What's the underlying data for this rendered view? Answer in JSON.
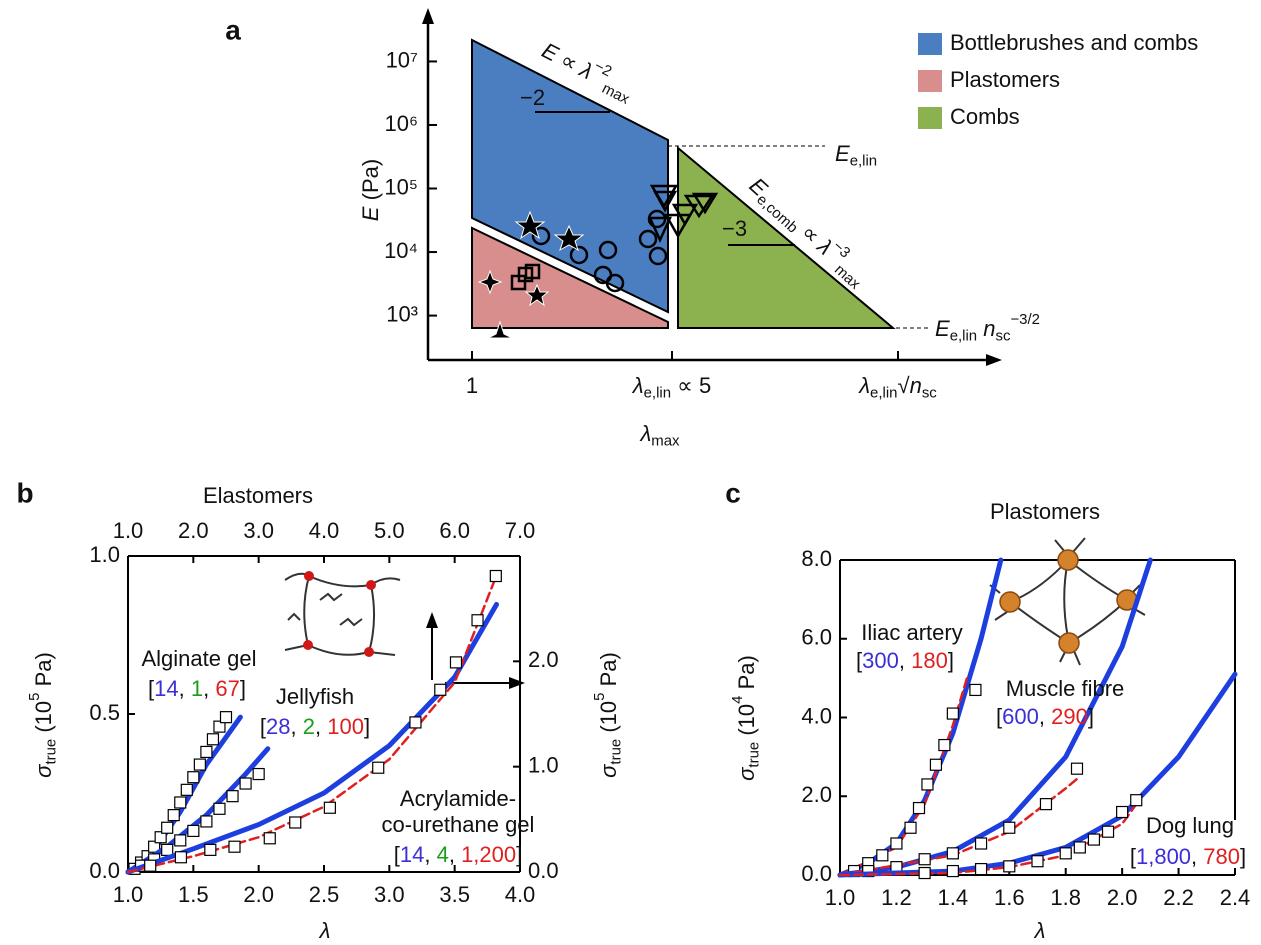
{
  "chart_data": [
    {
      "type": "schematic",
      "panel": "a",
      "series": [
        {
          "name": "Bottlebrushes and combs",
          "color": "#4a7ec1"
        },
        {
          "name": "Plastomers",
          "color": "#d98e8e"
        },
        {
          "name": "Combs",
          "color": "#8cb24f"
        }
      ],
      "y_label": [
        {
          "text": "E",
          "style": "i"
        },
        {
          "text": " (Pa)"
        }
      ],
      "x_label": [
        {
          "text": "λ",
          "style": "i"
        },
        {
          "text": "max",
          "style": "sub"
        }
      ],
      "yscale": "log",
      "ylim": [
        200,
        60000000
      ],
      "yticks": [
        {
          "value": 1000,
          "label": "10³"
        },
        {
          "value": 10000,
          "label": "10⁴"
        },
        {
          "value": 100000,
          "label": "10⁵"
        },
        {
          "value": 1000000,
          "label": "10⁶"
        },
        {
          "value": 10000000,
          "label": "10⁷"
        }
      ],
      "categories": [
        [
          {
            "text": "1"
          }
        ],
        [
          {
            "text": "λ",
            "style": "i"
          },
          {
            "text": "e,lin",
            "style": "sub"
          },
          {
            "text": " ∝ 5"
          }
        ],
        [
          {
            "text": "λ",
            "style": "i"
          },
          {
            "text": "e,lin",
            "style": "sub"
          },
          {
            "text": "√"
          },
          {
            "text": "n",
            "style": "i"
          },
          {
            "text": "sc",
            "style": "sub"
          }
        ]
      ],
      "annotations": [
        [
          {
            "text": "E",
            "style": "i"
          },
          {
            "text": " ∝ "
          },
          {
            "text": "λ",
            "style": "i"
          },
          {
            "text": "−2",
            "style": "sup"
          },
          {
            "text": "max",
            "style": "sub"
          }
        ],
        [
          {
            "text": "−2"
          }
        ],
        [
          {
            "text": "E",
            "style": "i"
          },
          {
            "text": "e,lin",
            "style": "sub"
          }
        ],
        [
          {
            "text": "E",
            "style": "i"
          },
          {
            "text": "e,comb",
            "style": "sub"
          },
          {
            "text": " ∝ "
          },
          {
            "text": "λ",
            "style": "i"
          },
          {
            "text": "−3",
            "style": "sup"
          },
          {
            "text": "max",
            "style": "sub"
          }
        ],
        [
          {
            "text": "−3"
          }
        ],
        [
          {
            "text": "E",
            "style": "i"
          },
          {
            "text": "e,lin",
            "style": "sub"
          },
          {
            "text": " "
          },
          {
            "text": "n",
            "style": "i"
          },
          {
            "text": "sc",
            "style": "sub"
          },
          {
            "text": "−3/2",
            "style": "sup"
          }
        ]
      ]
    },
    {
      "type": "line",
      "panel": "b",
      "title": "Elastomers",
      "x_label": [
        {
          "text": "λ",
          "style": "i"
        }
      ],
      "y_label": [
        {
          "text": "σ",
          "style": "i"
        },
        {
          "text": "true",
          "style": "sub"
        },
        {
          "text": " (10"
        },
        {
          "text": "5",
          "style": "sup"
        },
        {
          "text": " Pa)"
        }
      ],
      "y2_label": [
        {
          "text": "σ",
          "style": "i"
        },
        {
          "text": "true",
          "style": "sub"
        },
        {
          "text": " (10"
        },
        {
          "text": "5",
          "style": "sup"
        },
        {
          "text": " Pa)"
        }
      ],
      "xlim": [
        1,
        4
      ],
      "xticks": [
        {
          "value": 1,
          "label": "1.0"
        },
        1.5,
        {
          "value": 2,
          "label": "2.0"
        },
        2.5,
        {
          "value": 3,
          "label": "3.0"
        },
        3.5,
        {
          "value": 4,
          "label": "4.0"
        }
      ],
      "x2lim": [
        1,
        7
      ],
      "x2ticks": [
        {
          "value": 1,
          "label": "1.0"
        },
        {
          "value": 2,
          "label": "2.0"
        },
        {
          "value": 3,
          "label": "3.0"
        },
        {
          "value": 4,
          "label": "4.0"
        },
        {
          "value": 5,
          "label": "5.0"
        },
        {
          "value": 6,
          "label": "6.0"
        },
        {
          "value": 7,
          "label": "7.0"
        }
      ],
      "ylim": [
        0,
        1
      ],
      "yticks": [
        {
          "value": 0,
          "label": "0.0"
        },
        0.5,
        {
          "value": 1,
          "label": "1.0"
        }
      ],
      "y2lim": [
        0,
        3
      ],
      "y2ticks": [
        {
          "value": 0,
          "label": "0.0"
        },
        {
          "value": 1,
          "label": "1.0"
        },
        {
          "value": 2,
          "label": "2.0"
        }
      ],
      "param_colors": [
        "#3b2fd6",
        "#1a9e1a",
        "#e02020"
      ],
      "series": [
        {
          "name": [
            "Alginate gel"
          ],
          "params": "[14, 1, 67]",
          "markers": {
            "x": [
              1.05,
              1.1,
              1.15,
              1.2,
              1.25,
              1.3,
              1.35,
              1.4,
              1.45,
              1.5,
              1.55,
              1.6,
              1.65,
              1.7,
              1.75
            ],
            "values": [
              0.01,
              0.03,
              0.05,
              0.08,
              0.11,
              0.14,
              0.18,
              0.22,
              0.26,
              0.3,
              0.34,
              0.38,
              0.42,
              0.46,
              0.49
            ]
          },
          "fits": [
            {
              "color": "#1e3fe0",
              "dashed": false,
              "x": [
                1,
                1.2,
                1.4,
                1.6,
                1.86
              ],
              "values": [
                0,
                0.07,
                0.19,
                0.34,
                0.49
              ]
            },
            {
              "color": "#e02020",
              "dashed": true,
              "x": [
                1,
                1.2,
                1.4,
                1.6,
                1.72
              ],
              "values": [
                0,
                0.08,
                0.21,
                0.37,
                0.47
              ]
            }
          ]
        },
        {
          "name": [
            "Jellyfish"
          ],
          "params": "[28, 2, 100]",
          "markers": {
            "x": [
              1.1,
              1.2,
              1.3,
              1.4,
              1.5,
              1.6,
              1.7,
              1.8,
              1.9,
              2.0
            ],
            "values": [
              0.02,
              0.04,
              0.07,
              0.1,
              0.13,
              0.16,
              0.2,
              0.24,
              0.28,
              0.31
            ]
          },
          "fits": [
            {
              "color": "#1e3fe0",
              "dashed": false,
              "x": [
                1,
                1.3,
                1.6,
                1.9,
                2.07
              ],
              "values": [
                0,
                0.08,
                0.18,
                0.31,
                0.39
              ]
            }
          ]
        },
        {
          "name": [
            "Acrylamide-",
            "co-urethane gel"
          ],
          "params": "[14, 4, 1,200]",
          "axis": "y2",
          "xaxis": "x2",
          "markers": {
            "x": [
              1.34,
              1.81,
              2.26,
              2.63,
              3.17,
              3.56,
              4.09,
              4.83,
              5.4,
              5.78,
              6.02,
              6.35,
              6.63
            ],
            "values": [
              0.06,
              0.14,
              0.21,
              0.24,
              0.32,
              0.47,
              0.61,
              0.99,
              1.42,
              1.73,
              1.99,
              2.39,
              2.81
            ]
          },
          "fits": [
            {
              "color": "#1e3fe0",
              "dashed": false,
              "x": [
                1,
                2,
                3,
                4,
                5,
                6,
                6.64
              ],
              "values": [
                0,
                0.22,
                0.45,
                0.75,
                1.2,
                1.85,
                2.54
              ]
            },
            {
              "color": "#e02020",
              "dashed": true,
              "x": [
                1,
                2,
                3,
                4,
                5,
                6,
                6.63
              ],
              "values": [
                0,
                0.15,
                0.33,
                0.62,
                1.07,
                1.8,
                2.8
              ]
            }
          ]
        }
      ]
    },
    {
      "type": "line",
      "panel": "c",
      "title": "Plastomers",
      "x_label": [
        {
          "text": "λ",
          "style": "i"
        }
      ],
      "y_label": [
        {
          "text": "σ",
          "style": "i"
        },
        {
          "text": "true",
          "style": "sub"
        },
        {
          "text": " (10"
        },
        {
          "text": "4",
          "style": "sup"
        },
        {
          "text": " Pa)"
        }
      ],
      "xlim": [
        1,
        2.4
      ],
      "xticks": [
        {
          "value": 1,
          "label": "1.0"
        },
        1.2,
        1.4,
        1.6,
        1.8,
        {
          "value": 2,
          "label": "2.0"
        },
        2.2,
        2.4
      ],
      "ylim": [
        0,
        8
      ],
      "yticks": [
        {
          "value": 0,
          "label": "0.0"
        },
        {
          "value": 2,
          "label": "2.0"
        },
        {
          "value": 4,
          "label": "4.0"
        },
        {
          "value": 6,
          "label": "6.0"
        },
        {
          "value": 8,
          "label": "8.0"
        }
      ],
      "param_colors": [
        "#3b2fd6",
        "#e02020"
      ],
      "series": [
        {
          "name": [
            "Iliac artery"
          ],
          "params": "[300, 180]",
          "markers": {
            "x": [
              1.05,
              1.1,
              1.15,
              1.2,
              1.25,
              1.28,
              1.31,
              1.34,
              1.37,
              1.4,
              1.48
            ],
            "values": [
              0.1,
              0.3,
              0.5,
              0.8,
              1.2,
              1.7,
              2.3,
              2.8,
              3.3,
              4.1,
              4.7
            ]
          },
          "fits": [
            {
              "color": "#1e3fe0",
              "dashed": false,
              "x": [
                1,
                1.1,
                1.2,
                1.3,
                1.4,
                1.5,
                1.57
              ],
              "values": [
                0,
                0.3,
                0.8,
                1.9,
                3.6,
                6.0,
                8.0
              ]
            },
            {
              "color": "#e02020",
              "dashed": true,
              "x": [
                1,
                1.2,
                1.3,
                1.4,
                1.45
              ],
              "values": [
                0,
                0.7,
                1.8,
                3.8,
                5.0
              ]
            }
          ]
        },
        {
          "name": [
            "Muscle fibre"
          ],
          "params": "[600, 290]",
          "markers": {
            "x": [
              1.1,
              1.2,
              1.3,
              1.4,
              1.5,
              1.6,
              1.73,
              1.84
            ],
            "values": [
              0.1,
              0.2,
              0.4,
              0.55,
              0.8,
              1.2,
              1.8,
              2.7
            ]
          },
          "fits": [
            {
              "color": "#1e3fe0",
              "dashed": false,
              "x": [
                1,
                1.2,
                1.4,
                1.6,
                1.8,
                2.0,
                2.1
              ],
              "values": [
                0,
                0.2,
                0.6,
                1.4,
                3.0,
                5.8,
                8.0
              ]
            },
            {
              "color": "#e02020",
              "dashed": true,
              "x": [
                1,
                1.4,
                1.6,
                1.8,
                1.85
              ],
              "values": [
                0,
                0.5,
                1.1,
                2.2,
                2.5
              ]
            }
          ]
        },
        {
          "name": [
            "Dog lung"
          ],
          "params": "[1,800, 780]",
          "markers": {
            "x": [
              1.3,
              1.4,
              1.5,
              1.6,
              1.7,
              1.8,
              1.85,
              1.9,
              1.95,
              2.0,
              2.05
            ],
            "values": [
              0.05,
              0.1,
              0.15,
              0.22,
              0.35,
              0.55,
              0.7,
              0.9,
              1.1,
              1.6,
              1.9
            ]
          },
          "fits": [
            {
              "color": "#1e3fe0",
              "dashed": false,
              "x": [
                1,
                1.4,
                1.6,
                1.8,
                2.0,
                2.2,
                2.4
              ],
              "values": [
                0,
                0.1,
                0.3,
                0.7,
                1.5,
                3.0,
                5.1
              ]
            },
            {
              "color": "#e02020",
              "dashed": true,
              "x": [
                1,
                1.4,
                1.6,
                1.8,
                2.0,
                2.05
              ],
              "values": [
                0,
                0.05,
                0.2,
                0.5,
                1.3,
                1.8
              ]
            }
          ]
        }
      ]
    }
  ]
}
